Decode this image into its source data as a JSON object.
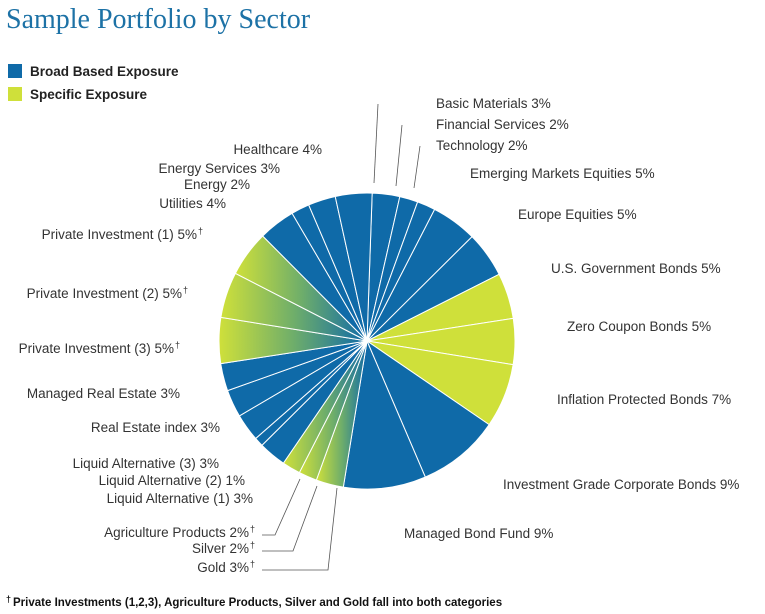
{
  "chart_data": {
    "type": "pie",
    "title": "Sample Portfolio by Sector",
    "legend": [
      {
        "name": "Broad Based Exposure",
        "color": "#0f6aa8"
      },
      {
        "name": "Specific Exposure",
        "color": "#cfe03a"
      }
    ],
    "slices": [
      {
        "label": "Basic Materials",
        "value": 3,
        "display": "Basic Materials 3%",
        "category": "broad"
      },
      {
        "label": "Financial Services",
        "value": 2,
        "display": "Financial Services 2%",
        "category": "broad"
      },
      {
        "label": "Technology",
        "value": 2,
        "display": "Technology 2%",
        "category": "broad"
      },
      {
        "label": "Emerging Markets Equities",
        "value": 5,
        "display": "Emerging Markets Equities 5%",
        "category": "broad"
      },
      {
        "label": "Europe Equities",
        "value": 5,
        "display": "Europe Equities 5%",
        "category": "broad"
      },
      {
        "label": "U.S. Government Bonds",
        "value": 5,
        "display": "U.S. Government Bonds 5%",
        "category": "specific"
      },
      {
        "label": "Zero Coupon Bonds",
        "value": 5,
        "display": "Zero Coupon Bonds 5%",
        "category": "specific"
      },
      {
        "label": "Inflation Protected Bonds",
        "value": 7,
        "display": "Inflation Protected Bonds 7%",
        "category": "specific"
      },
      {
        "label": "Investment Grade Corporate Bonds",
        "value": 9,
        "display": "Investment Grade Corporate Bonds 9%",
        "category": "broad"
      },
      {
        "label": "Managed Bond Fund",
        "value": 9,
        "display": "Managed Bond Fund 9%",
        "category": "broad"
      },
      {
        "label": "Gold",
        "value": 3,
        "display": "Gold 3%",
        "dagger": "†",
        "category": "both"
      },
      {
        "label": "Silver",
        "value": 2,
        "display": "Silver 2%",
        "dagger": "†",
        "category": "both"
      },
      {
        "label": "Agriculture Products",
        "value": 2,
        "display": "Agriculture Products 2%",
        "dagger": "†",
        "category": "both"
      },
      {
        "label": "Liquid Alternative (1)",
        "value": 3,
        "display": "Liquid Alternative (1) 3%",
        "category": "broad"
      },
      {
        "label": "Liquid Alternative (2)",
        "value": 1,
        "display": "Liquid Alternative (2) 1%",
        "category": "broad"
      },
      {
        "label": "Liquid Alternative (3)",
        "value": 3,
        "display": "Liquid Alternative (3) 3%",
        "category": "broad"
      },
      {
        "label": "Real Estate index",
        "value": 3,
        "display": "Real Estate index 3%",
        "category": "broad"
      },
      {
        "label": "Managed Real Estate",
        "value": 3,
        "display": "Managed Real Estate 3%",
        "category": "broad"
      },
      {
        "label": "Private Investment (3)",
        "value": 5,
        "display": "Private Investment (3) 5%",
        "dagger": "†",
        "category": "both"
      },
      {
        "label": "Private Investment (2)",
        "value": 5,
        "display": "Private Investment (2) 5%",
        "dagger": "†",
        "category": "both"
      },
      {
        "label": "Private Investment (1)",
        "value": 5,
        "display": "Private Investment (1) 5%",
        "dagger": "†",
        "category": "both"
      },
      {
        "label": "Utilities",
        "value": 4,
        "display": "Utilities 4%",
        "category": "broad"
      },
      {
        "label": "Energy",
        "value": 2,
        "display": "Energy 2%",
        "category": "broad"
      },
      {
        "label": "Energy Services",
        "value": 3,
        "display": "Energy Services 3%",
        "category": "broad"
      },
      {
        "label": "Healthcare",
        "value": 4,
        "display": "Healthcare 4%",
        "category": "broad"
      }
    ],
    "footnote_marker": "†",
    "footnote": "Private Investments (1,2,3), Agriculture Products, Silver and Gold fall into both categories"
  }
}
